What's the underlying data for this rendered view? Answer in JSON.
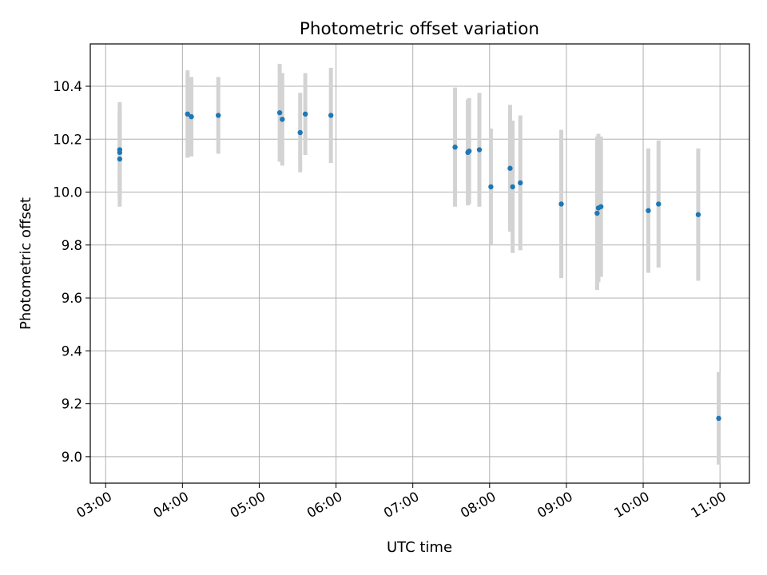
{
  "chart_data": {
    "type": "scatter",
    "title": "Photometric offset variation",
    "xlabel": "UTC time",
    "ylabel": "Photometric offset",
    "x_unit": "UTC",
    "xlim": [
      "02:48",
      "11:23"
    ],
    "ylim": [
      8.9,
      10.56
    ],
    "x_ticks": [
      "03:00",
      "04:00",
      "05:00",
      "06:00",
      "07:00",
      "08:00",
      "09:00",
      "10:00",
      "11:00"
    ],
    "y_ticks": [
      "9.0",
      "9.2",
      "9.4",
      "9.6",
      "9.8",
      "10.0",
      "10.2",
      "10.4"
    ],
    "grid": true,
    "legend": "none",
    "marker_color": "#1f77b4",
    "errorbar_color": "#d3d3d3",
    "series": [
      {
        "points": [
          {
            "x": "03:11",
            "y": 10.125,
            "err": 0.18
          },
          {
            "x": "03:11",
            "y": 10.15,
            "err": 0.17
          },
          {
            "x": "03:11",
            "y": 10.16,
            "err": 0.18
          },
          {
            "x": "04:04",
            "y": 10.295,
            "err": 0.165
          },
          {
            "x": "04:07",
            "y": 10.285,
            "err": 0.15
          },
          {
            "x": "04:28",
            "y": 10.29,
            "err": 0.145
          },
          {
            "x": "05:16",
            "y": 10.3,
            "err": 0.185
          },
          {
            "x": "05:18",
            "y": 10.275,
            "err": 0.175
          },
          {
            "x": "05:32",
            "y": 10.225,
            "err": 0.15
          },
          {
            "x": "05:36",
            "y": 10.295,
            "err": 0.155
          },
          {
            "x": "05:56",
            "y": 10.29,
            "err": 0.18
          },
          {
            "x": "07:33",
            "y": 10.17,
            "err": 0.225
          },
          {
            "x": "07:43",
            "y": 10.15,
            "err": 0.2
          },
          {
            "x": "07:44",
            "y": 10.155,
            "err": 0.2
          },
          {
            "x": "07:52",
            "y": 10.16,
            "err": 0.215
          },
          {
            "x": "08:01",
            "y": 10.02,
            "err": 0.22
          },
          {
            "x": "08:16",
            "y": 10.09,
            "err": 0.24
          },
          {
            "x": "08:18",
            "y": 10.02,
            "err": 0.25
          },
          {
            "x": "08:24",
            "y": 10.035,
            "err": 0.255
          },
          {
            "x": "08:56",
            "y": 9.955,
            "err": 0.28
          },
          {
            "x": "09:24",
            "y": 9.92,
            "err": 0.29
          },
          {
            "x": "09:25",
            "y": 9.94,
            "err": 0.28
          },
          {
            "x": "09:27",
            "y": 9.945,
            "err": 0.265
          },
          {
            "x": "10:04",
            "y": 9.93,
            "err": 0.235
          },
          {
            "x": "10:12",
            "y": 9.955,
            "err": 0.24
          },
          {
            "x": "10:43",
            "y": 9.915,
            "err": 0.25
          },
          {
            "x": "10:59",
            "y": 9.145,
            "err": 0.175
          }
        ]
      }
    ]
  }
}
